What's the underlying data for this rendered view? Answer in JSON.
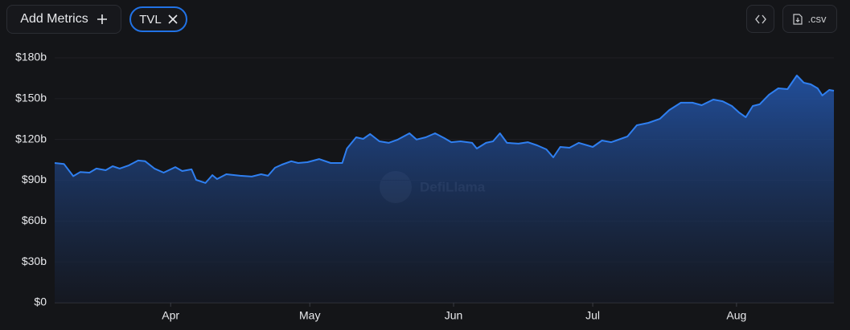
{
  "toolbar": {
    "add_metrics": "Add Metrics",
    "metric_chip": "TVL",
    "csv_button": ".csv"
  },
  "chart_data": {
    "type": "area",
    "watermark": "DefiLlama",
    "color": "#2f7ff0",
    "grid": true,
    "x": [
      0,
      2,
      4,
      5.5,
      7.5,
      9,
      11,
      12.5,
      14,
      16,
      18,
      19.5,
      21.5,
      23.5,
      26,
      27.5,
      29.5,
      30.5,
      32.5,
      34,
      35,
      37,
      40,
      42.5,
      44.5,
      46,
      47.5,
      49,
      51,
      52.5,
      54.5,
      57,
      59.5,
      62,
      63,
      65,
      66.5,
      68,
      70,
      72,
      74,
      76.5,
      78,
      80,
      82,
      84,
      85.5,
      87.5,
      90,
      91,
      93,
      94.5,
      96,
      97.5,
      100,
      102,
      104,
      106,
      107.5,
      109,
      111,
      113,
      116,
      118,
      120,
      122,
      123.5,
      125.5,
      128,
      130.5,
      132.5,
      135,
      137.5,
      139.5,
      142,
      144,
      146,
      147.5,
      149,
      150.5,
      152,
      154,
      156,
      158,
      160,
      161.5,
      163,
      164.5,
      165.5,
      167,
      168
    ],
    "values": [
      102.7,
      102,
      93,
      96,
      95.6,
      98.6,
      97.4,
      100.3,
      98.6,
      101,
      104.5,
      104,
      98.6,
      95.6,
      99.7,
      96.8,
      98,
      90.3,
      88,
      93.8,
      90.9,
      94.4,
      93.3,
      92.7,
      94.4,
      93.3,
      99.2,
      101.5,
      104,
      102.7,
      103.3,
      105.6,
      102.7,
      102.7,
      113.3,
      121.6,
      120.4,
      124,
      118.6,
      117.5,
      119.9,
      124.5,
      119.9,
      121.6,
      124.5,
      121,
      118,
      118.6,
      117.5,
      113.3,
      117.5,
      118.6,
      124.5,
      117.5,
      116.9,
      118,
      115.7,
      112.7,
      106.8,
      114.5,
      113.9,
      117.5,
      114.5,
      119.2,
      118,
      120.4,
      122.2,
      130.4,
      132.2,
      135.2,
      141.6,
      147,
      147,
      145.2,
      149.3,
      148.1,
      144.6,
      139.9,
      136.3,
      144.6,
      145.8,
      152.9,
      157.6,
      157,
      167,
      161.7,
      160.5,
      157.6,
      152.3,
      156.4,
      155.8
    ],
    "xlim": [
      0,
      168
    ],
    "xticks": [
      {
        "value": 25,
        "label": "Apr"
      },
      {
        "value": 55,
        "label": "May"
      },
      {
        "value": 86,
        "label": "Jun"
      },
      {
        "value": 116,
        "label": "Jul"
      },
      {
        "value": 147,
        "label": "Aug"
      }
    ],
    "ylim": [
      0,
      180
    ],
    "yticks": [
      {
        "value": 0,
        "label": "$0"
      },
      {
        "value": 30,
        "label": "$30b"
      },
      {
        "value": 60,
        "label": "$60b"
      },
      {
        "value": 90,
        "label": "$90b"
      },
      {
        "value": 120,
        "label": "$120b"
      },
      {
        "value": 150,
        "label": "$150b"
      },
      {
        "value": 180,
        "label": "$180b"
      }
    ]
  }
}
